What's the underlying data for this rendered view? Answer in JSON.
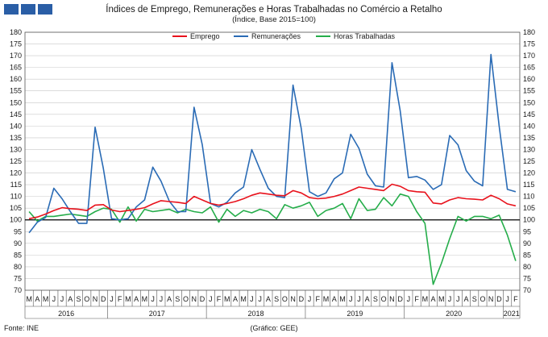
{
  "header": {
    "title": "Índices de Emprego, Remunerações e Horas Trabalhadas no Comércio a Retalho",
    "subtitle": "(Índice, Base 2015=100)"
  },
  "footer": {
    "source": "Fonte: INE",
    "credit": "(Gráfico: GEE)"
  },
  "colors": {
    "emprego": "#e8121c",
    "remuneracoes": "#2a6bb5",
    "horas": "#25ad4a",
    "baseline": "#000000",
    "grid": "#c8c8c8",
    "logo": "#2a5ea6"
  },
  "chart_data": {
    "type": "line",
    "ylim": [
      70,
      180
    ],
    "y_ticks": [
      70,
      75,
      80,
      85,
      90,
      95,
      100,
      105,
      110,
      115,
      120,
      125,
      130,
      135,
      140,
      145,
      150,
      155,
      160,
      165,
      170,
      175,
      180
    ],
    "baseline": 100,
    "month_labels": [
      "M",
      "A",
      "M",
      "J",
      "J",
      "A",
      "S",
      "O",
      "N",
      "D",
      "J",
      "F",
      "M",
      "A",
      "M",
      "J",
      "J",
      "A",
      "S",
      "O",
      "N",
      "D",
      "J",
      "F",
      "M",
      "A",
      "M",
      "J",
      "J",
      "A",
      "S",
      "O",
      "N",
      "D",
      "J",
      "F",
      "M",
      "A",
      "M",
      "J",
      "J",
      "A",
      "S",
      "O",
      "N",
      "D",
      "J",
      "F",
      "M",
      "A",
      "M",
      "J",
      "J",
      "A",
      "S",
      "O",
      "N",
      "D",
      "J",
      "F"
    ],
    "year_groups": [
      {
        "label": "2016",
        "start": 0,
        "end": 9
      },
      {
        "label": "2017",
        "start": 10,
        "end": 21
      },
      {
        "label": "2018",
        "start": 22,
        "end": 33
      },
      {
        "label": "2019",
        "start": 34,
        "end": 45
      },
      {
        "label": "2020",
        "start": 46,
        "end": 57
      },
      {
        "label": "2021",
        "start": 58,
        "end": 59
      }
    ],
    "legend_position": "top-center",
    "grid": true,
    "series": [
      {
        "name": "Emprego",
        "color_key": "emprego",
        "values": [
          100.5,
          101.2,
          102.5,
          104.0,
          105.2,
          104.8,
          104.5,
          104.0,
          106.3,
          106.5,
          104.2,
          103.5,
          104.0,
          104.5,
          105.2,
          106.8,
          108.2,
          107.8,
          107.5,
          107.0,
          110.0,
          108.5,
          107.0,
          106.3,
          107.0,
          107.8,
          109.0,
          110.5,
          111.5,
          111.0,
          110.5,
          110.3,
          112.5,
          111.5,
          109.5,
          109.0,
          109.3,
          110.0,
          111.0,
          112.5,
          114.0,
          113.5,
          113.0,
          112.5,
          115.2,
          114.3,
          112.5,
          112.0,
          111.8,
          107.2,
          106.8,
          108.5,
          109.5,
          109.0,
          108.8,
          108.5,
          110.5,
          109.0,
          106.8,
          106.0
        ]
      },
      {
        "name": "Remunerações",
        "color_key": "remuneracoes",
        "values": [
          94.5,
          99.0,
          101.0,
          113.5,
          109.0,
          103.5,
          98.5,
          98.5,
          139.5,
          122.0,
          100.5,
          100.0,
          100.5,
          105.5,
          108.5,
          122.5,
          116.5,
          108.0,
          103.5,
          103.5,
          148.0,
          132.0,
          107.0,
          105.5,
          107.5,
          111.5,
          114.0,
          130.0,
          121.5,
          113.5,
          110.0,
          109.5,
          157.5,
          139.0,
          112.0,
          110.0,
          111.5,
          117.5,
          120.0,
          136.5,
          130.5,
          119.5,
          114.5,
          114.0,
          167.0,
          146.5,
          118.0,
          118.5,
          117.0,
          113.0,
          115.0,
          136.0,
          132.0,
          121.0,
          116.5,
          114.5,
          170.5,
          140.0,
          113.0,
          112.0
        ]
      },
      {
        "name": "Horas Trabalhadas",
        "color_key": "horas",
        "values": [
          103.5,
          99.5,
          101.5,
          101.5,
          102.0,
          102.5,
          102.0,
          101.5,
          103.5,
          105.0,
          104.5,
          99.0,
          105.5,
          99.5,
          104.5,
          103.5,
          104.0,
          104.5,
          103.0,
          104.5,
          103.5,
          103.0,
          105.5,
          99.0,
          104.5,
          101.5,
          104.0,
          103.0,
          104.5,
          103.5,
          100.5,
          106.5,
          105.0,
          106.0,
          107.5,
          101.5,
          104.0,
          105.0,
          107.0,
          100.5,
          109.0,
          104.0,
          104.5,
          109.5,
          106.0,
          111.0,
          110.0,
          103.5,
          98.5,
          72.5,
          81.5,
          92.0,
          101.5,
          99.5,
          101.5,
          101.5,
          100.5,
          102.0,
          93.5,
          82.5
        ]
      }
    ]
  }
}
